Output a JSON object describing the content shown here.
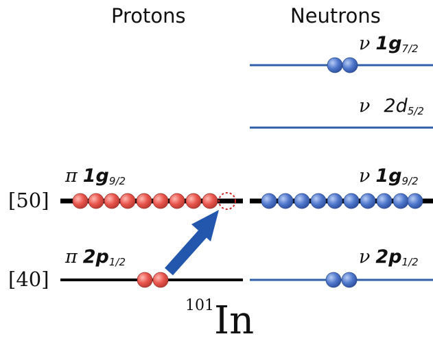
{
  "headers": {
    "protons": "Protons",
    "neutrons": "Neutrons"
  },
  "nucleus": {
    "mass": "101",
    "symbol": "In"
  },
  "magic_numbers": {
    "n50": "[50]",
    "n40": "[40]"
  },
  "levels": {
    "p_1g92": {
      "greek": "π",
      "orbital": "1g",
      "j": "9/2",
      "occupancy": 9,
      "holes": 1
    },
    "p_2p12": {
      "greek": "π",
      "orbital": "2p",
      "j": "1/2",
      "occupancy": 2
    },
    "n_1g72": {
      "greek": "ν",
      "orbital": "1g",
      "j": "7/2",
      "occupancy": 2
    },
    "n_2d52": {
      "greek": "ν",
      "orbital": "2d",
      "j": "5/2",
      "occupancy": 0
    },
    "n_1g92": {
      "greek": "ν",
      "orbital": "1g",
      "j": "9/2",
      "occupancy": 10
    },
    "n_2p12": {
      "greek": "ν",
      "orbital": "2p",
      "j": "1/2",
      "occupancy": 2
    }
  },
  "colors": {
    "proton": "#e8544c",
    "neutron": "#4f77cc",
    "proton_line": "#000000",
    "neutron_line": "#2f5fa8",
    "arrow": "#2257ad",
    "hole": "#cc2222"
  }
}
